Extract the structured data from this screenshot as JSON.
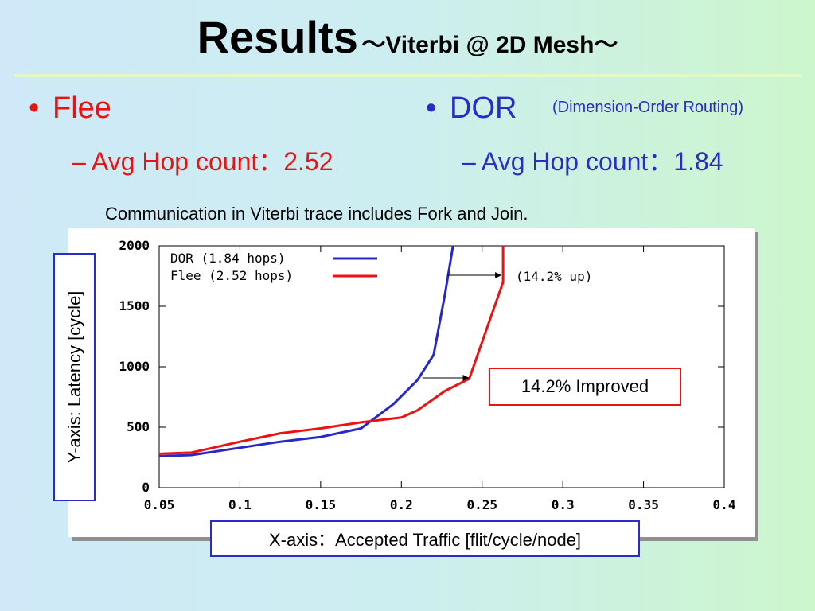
{
  "title": {
    "main": "Results",
    "sub": "～Viterbi @ 2D Mesh～"
  },
  "bullets": {
    "flee": {
      "label": "Flee",
      "sub": "– Avg Hop count：2.52"
    },
    "dor": {
      "label": "DOR",
      "note": "(Dimension-Order Routing)",
      "sub": "– Avg Hop count：1.84"
    },
    "glyph": "•"
  },
  "caption": "Communication in Viterbi trace includes Fork and Join.",
  "ylabel_box": "Y-axis: Latency [cycle]",
  "xlabel_box": "X-axis：Accepted Traffic [flit/cycle/node]",
  "callout_box": "14.2% Improved",
  "colors": {
    "dor": "#2828c8",
    "flee": "#ee1111",
    "text_red": "#e81313",
    "text_blue": "#2b2bc6"
  },
  "chart_data": {
    "type": "line",
    "xlim": [
      0.05,
      0.4
    ],
    "ylim": [
      0,
      2000
    ],
    "xticks": [
      "0.05",
      "0.1",
      "0.15",
      "0.2",
      "0.25",
      "0.3",
      "0.35",
      "0.4"
    ],
    "xtick_values": [
      0.05,
      0.1,
      0.15,
      0.2,
      0.25,
      0.3,
      0.35,
      0.4
    ],
    "yticks": [
      "0",
      "500",
      "1000",
      "1500",
      "2000"
    ],
    "ytick_values": [
      0,
      500,
      1000,
      1500,
      2000
    ],
    "grid": false,
    "legend_placement": "top-left",
    "series": [
      {
        "name": "DOR (1.84 hops)",
        "color": "#2828c8",
        "points": [
          [
            0.05,
            260
          ],
          [
            0.07,
            270
          ],
          [
            0.1,
            330
          ],
          [
            0.125,
            380
          ],
          [
            0.15,
            420
          ],
          [
            0.175,
            490
          ],
          [
            0.195,
            690
          ],
          [
            0.21,
            890
          ],
          [
            0.22,
            1100
          ],
          [
            0.227,
            1600
          ],
          [
            0.232,
            2000
          ]
        ]
      },
      {
        "name": "Flee (2.52 hops)",
        "color": "#ee1111",
        "points": [
          [
            0.05,
            280
          ],
          [
            0.07,
            290
          ],
          [
            0.1,
            380
          ],
          [
            0.125,
            450
          ],
          [
            0.15,
            490
          ],
          [
            0.175,
            540
          ],
          [
            0.2,
            580
          ],
          [
            0.21,
            640
          ],
          [
            0.227,
            800
          ],
          [
            0.242,
            900
          ],
          [
            0.263,
            1700
          ],
          [
            0.263,
            2000
          ]
        ]
      }
    ],
    "annotations": [
      {
        "text": "(14.2% up)"
      }
    ]
  }
}
